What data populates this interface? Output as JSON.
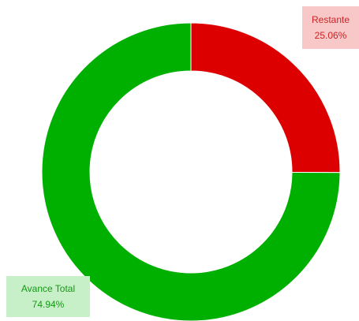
{
  "chart_data": {
    "type": "donut",
    "categories": [
      "Restante",
      "Avance Total"
    ],
    "values": [
      25.06,
      74.94
    ],
    "value_labels": [
      "25.06%",
      "74.94%"
    ],
    "colors": [
      "#dd0000",
      "#00b000"
    ]
  }
}
